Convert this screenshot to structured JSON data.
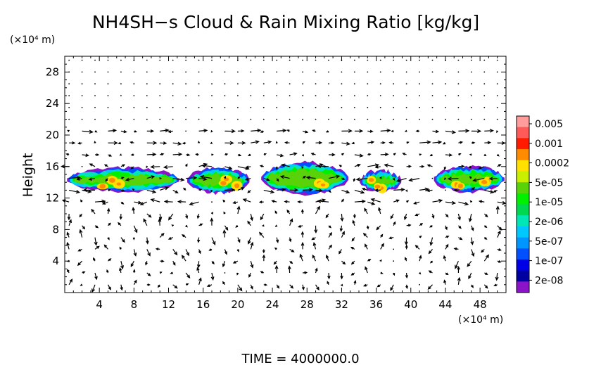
{
  "chart_data": {
    "type": "heatmap",
    "title": "NH4SH−s Cloud & Rain Mixing Ratio [kg/kg]",
    "ylabel": "Height",
    "y_unit": "(×10⁴ m)",
    "x_unit": "(×10⁴ m)",
    "xlim": [
      0,
      51
    ],
    "ylim": [
      0,
      30
    ],
    "x_ticks": [
      4,
      8,
      12,
      16,
      20,
      24,
      28,
      32,
      36,
      40,
      44,
      48
    ],
    "y_ticks": [
      4,
      8,
      12,
      16,
      20,
      24,
      28
    ],
    "x_tick_labels": [
      "4",
      "8",
      "12",
      "16",
      "20",
      "24",
      "28",
      "32",
      "36",
      "40",
      "44",
      "48"
    ],
    "y_tick_labels": [
      "4",
      "8",
      "12",
      "16",
      "20",
      "24",
      "28"
    ],
    "colorbar": {
      "labels": [
        "0.005",
        "0.001",
        "0.0002",
        "5e-05",
        "1e-05",
        "2e-06",
        "5e-07",
        "1e-07",
        "2e-08"
      ],
      "colors": [
        "#ff9c9c",
        "#ff5a5a",
        "#ff1a00",
        "#ff8c00",
        "#ffe000",
        "#c8f000",
        "#5ad20a",
        "#00f000",
        "#00d850",
        "#00e6b4",
        "#00c8ff",
        "#0096ff",
        "#0050ff",
        "#0000e6",
        "#0000a0",
        "#8c14c8"
      ]
    },
    "cloud_layers": [
      {
        "x": [
          0,
          13.5
        ],
        "y_bottom": 12.8,
        "y_top": 15.8,
        "peak": 3
      },
      {
        "x": [
          14,
          21.5
        ],
        "y_bottom": 12.6,
        "y_top": 15.8,
        "peak": 3
      },
      {
        "x": [
          22.5,
          33
        ],
        "y_bottom": 12.5,
        "y_top": 16.5,
        "peak": 2
      },
      {
        "x": [
          34,
          39
        ],
        "y_bottom": 12.8,
        "y_top": 15.5,
        "peak": 4
      },
      {
        "x": [
          42.5,
          51
        ],
        "y_bottom": 12.8,
        "y_top": 16,
        "peak": 5
      }
    ],
    "wind_field": "vectors",
    "time_label": "TIME  =  4000000.0"
  }
}
